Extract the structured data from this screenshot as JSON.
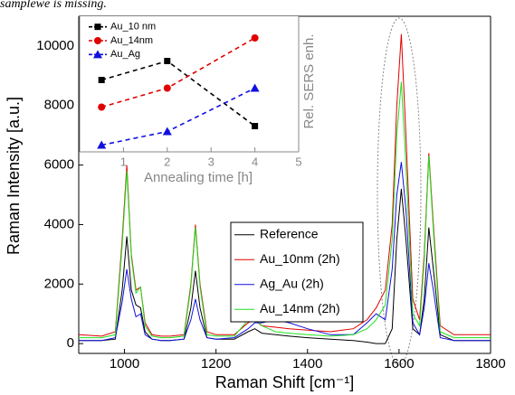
{
  "caption_fragment": "samplewe is missing.",
  "chart_data": [
    {
      "type": "line",
      "xlabel": "Raman Shift [cm⁻¹]",
      "ylabel": "Raman Intensity [a.u.]",
      "xlim": [
        900,
        1800
      ],
      "ylim": [
        -330,
        11000
      ],
      "xticks": [
        1000,
        1200,
        1400,
        1600,
        1800
      ],
      "yticks": [
        0,
        2000,
        4000,
        6000,
        8000,
        10000
      ],
      "legend": "lower-right",
      "x": [
        900,
        950,
        980,
        995,
        1005,
        1015,
        1025,
        1035,
        1045,
        1060,
        1080,
        1100,
        1130,
        1145,
        1155,
        1165,
        1180,
        1200,
        1240,
        1270,
        1285,
        1300,
        1330,
        1360,
        1400,
        1450,
        1500,
        1530,
        1550,
        1570,
        1585,
        1595,
        1605,
        1615,
        1630,
        1645,
        1655,
        1665,
        1675,
        1690,
        1720,
        1760,
        1800
      ],
      "series": [
        {
          "name": "Reference",
          "color": "#000000",
          "values": [
            100,
            100,
            150,
            1800,
            3600,
            1800,
            1300,
            1200,
            400,
            150,
            100,
            100,
            150,
            1200,
            2450,
            1200,
            200,
            150,
            150,
            400,
            500,
            350,
            300,
            250,
            200,
            150,
            100,
            50,
            0,
            0,
            500,
            3500,
            5200,
            3500,
            500,
            300,
            1500,
            3900,
            2500,
            300,
            100,
            100,
            100
          ]
        },
        {
          "name": "Au_10nm (2h)",
          "color": "#e00000",
          "values": [
            300,
            250,
            400,
            3500,
            6000,
            3000,
            1800,
            1900,
            700,
            300,
            250,
            250,
            300,
            2000,
            4000,
            2000,
            400,
            300,
            300,
            700,
            800,
            600,
            550,
            500,
            450,
            400,
            500,
            800,
            1200,
            1800,
            4000,
            8000,
            10400,
            7000,
            1500,
            800,
            3000,
            6400,
            4000,
            600,
            300,
            300,
            300
          ]
        },
        {
          "name": "Ag_Au (2h)",
          "color": "#1010e0",
          "values": [
            100,
            100,
            200,
            1400,
            2500,
            1500,
            900,
            1000,
            300,
            150,
            100,
            100,
            150,
            800,
            1500,
            800,
            200,
            150,
            200,
            500,
            700,
            700,
            800,
            700,
            500,
            300,
            300,
            700,
            1000,
            800,
            2500,
            5000,
            6100,
            4500,
            700,
            300,
            1200,
            2700,
            1800,
            200,
            100,
            100,
            100
          ]
        },
        {
          "name": "Au_14nm (2h)",
          "color": "#20e020",
          "values": [
            200,
            200,
            300,
            3300,
            5800,
            2900,
            1700,
            1900,
            600,
            250,
            200,
            200,
            250,
            1900,
            3900,
            1900,
            300,
            250,
            250,
            800,
            900,
            600,
            400,
            350,
            300,
            250,
            300,
            500,
            800,
            1300,
            3500,
            7000,
            8800,
            6000,
            1000,
            600,
            2800,
            6300,
            3800,
            400,
            200,
            200,
            200
          ]
        }
      ]
    },
    {
      "type": "line",
      "xlabel": "Annealing time [h]",
      "ylabel": "Rel. SERS enh.",
      "xlim": [
        0,
        5
      ],
      "ylim": [
        0,
        10
      ],
      "xticks": [
        1,
        2,
        3,
        4,
        5
      ],
      "legend": "upper-left",
      "x": [
        0.5,
        2,
        4
      ],
      "series": [
        {
          "name": "Au_10 nm",
          "color": "#000000",
          "marker": "square",
          "values": [
            5.3,
            6.7,
            1.9
          ]
        },
        {
          "name": "Au_14nm",
          "color": "#e00000",
          "marker": "circle",
          "values": [
            3.3,
            4.7,
            8.4
          ]
        },
        {
          "name": "Au_Ag",
          "color": "#1010e0",
          "marker": "triangle",
          "values": [
            0.5,
            1.5,
            4.7
          ]
        }
      ]
    }
  ]
}
